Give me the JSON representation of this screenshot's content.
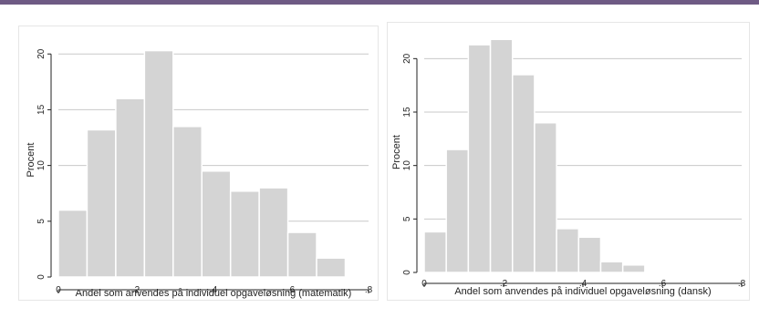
{
  "colors": {
    "top_bar": "#6e5a84",
    "bar_fill": "#d4d4d4",
    "grid": "#c9c9c9",
    "axis": "#222222"
  },
  "chart_data": [
    {
      "type": "bar",
      "subtype": "histogram",
      "xlabel": "Andel som anvendes på individuel opgaveløsning (matematik)",
      "ylabel": "Procent",
      "xlim": [
        0,
        0.8
      ],
      "ylim": [
        0,
        21
      ],
      "xticks": [
        0,
        0.2,
        0.4,
        0.6,
        0.8
      ],
      "xtick_labels": [
        "0",
        ".2",
        ".4",
        ".6",
        ".8"
      ],
      "yticks": [
        0,
        5,
        10,
        15,
        20
      ],
      "ytick_labels": [
        "0",
        "5",
        "10",
        "15",
        "20"
      ],
      "grid": "horizontal",
      "bin_width": 0.074,
      "bin_edges": [
        0,
        0.074,
        0.148,
        0.222,
        0.296,
        0.37,
        0.444,
        0.518,
        0.592,
        0.666,
        0.74
      ],
      "values": [
        6.0,
        13.2,
        16.0,
        20.3,
        13.5,
        9.5,
        7.7,
        8.0,
        4.0,
        1.7
      ]
    },
    {
      "type": "bar",
      "subtype": "histogram",
      "xlabel": "Andel som anvendes på individuel opgaveløsning (dansk)",
      "ylabel": "Procent",
      "xlim": [
        0,
        0.8
      ],
      "ylim": [
        0,
        22.5
      ],
      "xticks": [
        0,
        0.2,
        0.4,
        0.6,
        0.8
      ],
      "xtick_labels": [
        "0",
        ".2",
        ".4",
        ".6",
        ".8"
      ],
      "yticks": [
        0,
        5,
        10,
        15,
        20
      ],
      "ytick_labels": [
        "0",
        "5",
        "10",
        "15",
        "20"
      ],
      "grid": "horizontal",
      "bin_width": 0.0556,
      "bin_edges": [
        0,
        0.0556,
        0.1112,
        0.1668,
        0.2224,
        0.278,
        0.3336,
        0.3892,
        0.4448,
        0.5004,
        0.556
      ],
      "values": [
        3.8,
        11.5,
        21.3,
        21.8,
        18.5,
        14.0,
        4.1,
        3.3,
        1.0,
        0.7
      ]
    }
  ]
}
